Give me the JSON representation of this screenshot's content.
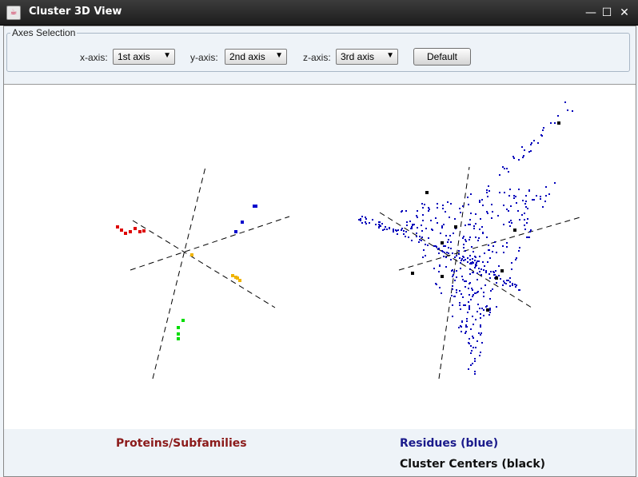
{
  "window": {
    "title": "Cluster 3D View",
    "app_icon": "java-cup-icon"
  },
  "axes_selection": {
    "legend": "Axes Selection",
    "x": {
      "label": "x-axis:",
      "value": "1st axis"
    },
    "y": {
      "label": "y-axis:",
      "value": "2nd axis"
    },
    "z": {
      "label": "z-axis:",
      "value": "3rd axis"
    },
    "default_button": "Default"
  },
  "legend_text": {
    "proteins": "Proteins/Subfamilies",
    "residues": "Residues (blue)",
    "centers": "Cluster Centers (black)"
  },
  "colors": {
    "proteins_label": "#8b1a1a",
    "residues_label": "#1a1a8b",
    "centers_label": "#111111",
    "cluster_red": "#dd0000",
    "cluster_blue": "#0000cc",
    "cluster_yellow": "#f0b400",
    "cluster_green": "#00dd00",
    "residue": "#0000bb",
    "center": "#000000"
  },
  "chart_data": [
    {
      "type": "scatter",
      "name": "Proteins/Subfamilies",
      "series": [
        {
          "color": "red",
          "count": 7
        },
        {
          "color": "blue",
          "count": 4
        },
        {
          "color": "yellow",
          "count": 5
        },
        {
          "color": "green",
          "count": 4
        }
      ]
    },
    {
      "type": "scatter",
      "name": "Residues (blue) / Cluster Centers (black)",
      "residue_count": 480,
      "center_count": 10
    }
  ]
}
